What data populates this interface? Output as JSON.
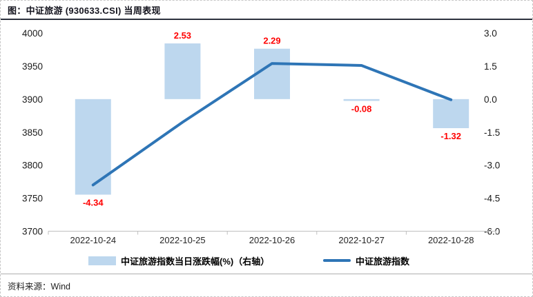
{
  "figure": {
    "title": "图：中证旅游 (930633.CSI) 当周表现"
  },
  "footer": {
    "source_label": "资料来源：",
    "source_value": "Wind"
  },
  "chart_data": {
    "type": "combo-bar-line",
    "categories": [
      "2022-10-24",
      "2022-10-25",
      "2022-10-26",
      "2022-10-27",
      "2022-10-28"
    ],
    "series": [
      {
        "name": "中证旅游指数当日涨跌幅(%)（右轴）",
        "type": "bar",
        "axis": "right",
        "values": [
          -4.34,
          2.53,
          2.29,
          -0.08,
          -1.32
        ],
        "color": "#bdd7ee",
        "data_label_color": "#ff0000"
      },
      {
        "name": "中证旅游指数",
        "type": "line",
        "axis": "left",
        "values": [
          3770,
          3865,
          3954,
          3951,
          3899
        ],
        "color": "#2e75b6"
      }
    ],
    "left_axis": {
      "tick_labels": [
        "4000",
        "3950",
        "3900",
        "3850",
        "3800",
        "3750",
        "3700"
      ],
      "min": 3700,
      "max": 4000
    },
    "right_axis": {
      "tick_labels": [
        "3.0",
        "1.5",
        "0.0",
        "-1.5",
        "-3.0",
        "-4.5",
        "-6.0"
      ],
      "min": -6.0,
      "max": 3.0
    },
    "grid": "off",
    "legend_position": "bottom"
  }
}
